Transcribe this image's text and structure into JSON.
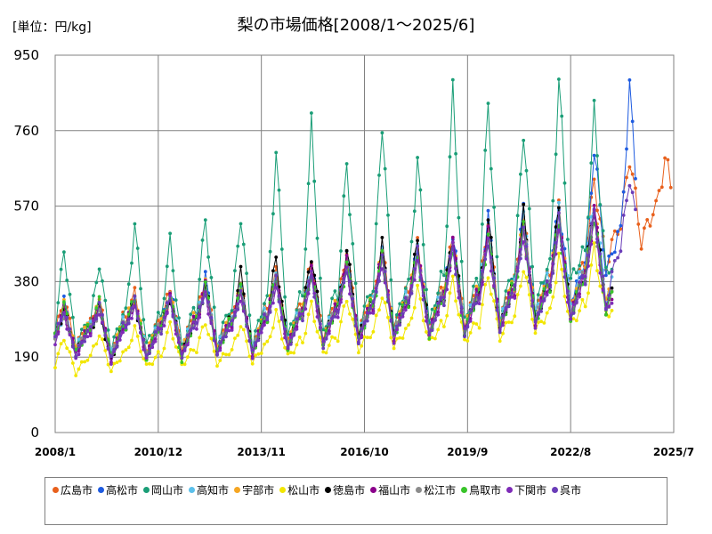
{
  "unit_label": "[単位：円/kg]",
  "chart_data": {
    "type": "line",
    "title": "梨の市場価格[2008/1～2025/6]",
    "xlabel": "",
    "ylabel": "",
    "ylim": [
      0,
      950
    ],
    "yticks": [
      0,
      190,
      380,
      570,
      760,
      950
    ],
    "xlim": [
      "2008-01",
      "2025-07"
    ],
    "xtick_labels": [
      "2008/1",
      "2010/12",
      "2013/11",
      "2016/10",
      "2019/9",
      "2022/8",
      "2025/7"
    ],
    "grid": true,
    "legend_position": "bottom",
    "series": [
      {
        "name": "広島市",
        "color": "#E8601C",
        "end": "2025-06",
        "years": [
          [
            250,
            340,
            215
          ],
          [
            275,
            330,
            195
          ],
          [
            290,
            350,
            200
          ],
          [
            280,
            360,
            210
          ],
          [
            300,
            380,
            215
          ],
          [
            290,
            370,
            210
          ],
          [
            310,
            400,
            230
          ],
          [
            320,
            430,
            235
          ],
          [
            330,
            450,
            250
          ],
          [
            340,
            460,
            260
          ],
          [
            350,
            470,
            265
          ],
          [
            360,
            490,
            270
          ],
          [
            360,
            520,
            280
          ],
          [
            380,
            540,
            300
          ],
          [
            390,
            560,
            320
          ],
          [
            420,
            640,
            420
          ],
          [
            520,
            700,
            480
          ],
          [
            560,
            690,
            560
          ]
        ]
      },
      {
        "name": "高松市",
        "color": "#1E5BE0",
        "end": "2024-06",
        "years": [
          [
            230,
            330,
            200
          ],
          [
            260,
            320,
            190
          ],
          [
            270,
            340,
            195
          ],
          [
            270,
            360,
            205
          ],
          [
            280,
            390,
            210
          ],
          [
            275,
            360,
            205
          ],
          [
            290,
            390,
            225
          ],
          [
            300,
            420,
            230
          ],
          [
            310,
            440,
            240
          ],
          [
            320,
            455,
            250
          ],
          [
            330,
            470,
            255
          ],
          [
            350,
            500,
            260
          ],
          [
            350,
            540,
            270
          ],
          [
            370,
            560,
            290
          ],
          [
            380,
            580,
            310
          ],
          [
            420,
            720,
            400
          ],
          [
            500,
            860,
            470
          ]
        ]
      },
      {
        "name": "岡山市",
        "color": "#1A9E77",
        "end": "2023-10",
        "years": [
          [
            260,
            460,
            220
          ],
          [
            280,
            430,
            210
          ],
          [
            300,
            520,
            220
          ],
          [
            290,
            480,
            215
          ],
          [
            310,
            540,
            225
          ],
          [
            310,
            550,
            220
          ],
          [
            330,
            700,
            240
          ],
          [
            340,
            770,
            250
          ],
          [
            350,
            680,
            255
          ],
          [
            360,
            790,
            260
          ],
          [
            370,
            690,
            270
          ],
          [
            390,
            850,
            280
          ],
          [
            380,
            830,
            290
          ],
          [
            400,
            770,
            310
          ],
          [
            420,
            890,
            380
          ],
          [
            450,
            800,
            400
          ]
        ]
      },
      {
        "name": "高知市",
        "color": "#5BC0EB",
        "end": "2023-10",
        "years": [
          [
            240,
            300,
            210
          ],
          [
            270,
            310,
            200
          ],
          [
            280,
            330,
            200
          ],
          [
            270,
            340,
            210
          ],
          [
            290,
            370,
            215
          ],
          [
            280,
            360,
            210
          ],
          [
            300,
            390,
            225
          ],
          [
            310,
            410,
            235
          ],
          [
            320,
            430,
            240
          ],
          [
            330,
            450,
            250
          ],
          [
            340,
            460,
            255
          ],
          [
            350,
            480,
            260
          ],
          [
            355,
            510,
            275
          ],
          [
            370,
            540,
            300
          ],
          [
            385,
            560,
            320
          ],
          [
            410,
            580,
            340
          ]
        ]
      },
      {
        "name": "宇部市",
        "color": "#F5A623",
        "end": "2023-10",
        "years": [
          [
            240,
            320,
            210
          ],
          [
            270,
            320,
            195
          ],
          [
            280,
            340,
            200
          ],
          [
            275,
            350,
            205
          ],
          [
            290,
            370,
            210
          ],
          [
            285,
            360,
            205
          ],
          [
            300,
            390,
            225
          ],
          [
            310,
            410,
            230
          ],
          [
            320,
            430,
            240
          ],
          [
            330,
            450,
            250
          ],
          [
            340,
            460,
            255
          ],
          [
            350,
            480,
            260
          ],
          [
            355,
            500,
            270
          ],
          [
            370,
            530,
            290
          ],
          [
            380,
            540,
            300
          ],
          [
            400,
            560,
            330
          ]
        ]
      },
      {
        "name": "松山市",
        "color": "#F2E600",
        "end": "2023-10",
        "years": [
          [
            170,
            240,
            150
          ],
          [
            190,
            250,
            155
          ],
          [
            200,
            260,
            165
          ],
          [
            195,
            270,
            170
          ],
          [
            210,
            280,
            175
          ],
          [
            205,
            275,
            175
          ],
          [
            220,
            300,
            190
          ],
          [
            230,
            320,
            200
          ],
          [
            240,
            340,
            210
          ],
          [
            250,
            350,
            215
          ],
          [
            260,
            360,
            225
          ],
          [
            270,
            380,
            230
          ],
          [
            275,
            400,
            240
          ],
          [
            290,
            420,
            255
          ],
          [
            300,
            440,
            270
          ],
          [
            320,
            460,
            300
          ]
        ]
      },
      {
        "name": "徳島市",
        "color": "#000000",
        "end": "2023-10",
        "years": [
          [
            240,
            310,
            200
          ],
          [
            260,
            310,
            180
          ],
          [
            270,
            330,
            190
          ],
          [
            265,
            340,
            195
          ],
          [
            280,
            370,
            200
          ],
          [
            280,
            400,
            200
          ],
          [
            290,
            440,
            215
          ],
          [
            300,
            450,
            230
          ],
          [
            310,
            460,
            240
          ],
          [
            320,
            470,
            245
          ],
          [
            330,
            480,
            250
          ],
          [
            340,
            500,
            255
          ],
          [
            340,
            540,
            260
          ],
          [
            360,
            550,
            280
          ],
          [
            370,
            560,
            290
          ],
          [
            390,
            570,
            310
          ]
        ]
      },
      {
        "name": "福山市",
        "color": "#8B008B",
        "end": "2023-10",
        "years": [
          [
            240,
            310,
            200
          ],
          [
            260,
            320,
            185
          ],
          [
            270,
            330,
            190
          ],
          [
            265,
            340,
            195
          ],
          [
            280,
            370,
            205
          ],
          [
            275,
            360,
            200
          ],
          [
            290,
            390,
            215
          ],
          [
            300,
            410,
            225
          ],
          [
            310,
            430,
            235
          ],
          [
            320,
            450,
            240
          ],
          [
            330,
            460,
            250
          ],
          [
            340,
            480,
            255
          ],
          [
            345,
            500,
            265
          ],
          [
            360,
            520,
            280
          ],
          [
            370,
            540,
            290
          ],
          [
            390,
            560,
            310
          ]
        ]
      },
      {
        "name": "松江市",
        "color": "#8C8C8C",
        "end": "2023-10",
        "years": [
          [
            240,
            300,
            200
          ],
          [
            260,
            310,
            190
          ],
          [
            270,
            330,
            195
          ],
          [
            265,
            340,
            200
          ],
          [
            280,
            360,
            205
          ],
          [
            275,
            355,
            205
          ],
          [
            290,
            380,
            220
          ],
          [
            300,
            400,
            230
          ],
          [
            310,
            420,
            235
          ],
          [
            320,
            440,
            245
          ],
          [
            330,
            450,
            250
          ],
          [
            340,
            470,
            255
          ],
          [
            345,
            490,
            265
          ],
          [
            360,
            520,
            280
          ],
          [
            370,
            530,
            290
          ],
          [
            390,
            550,
            310
          ]
        ]
      },
      {
        "name": "鳥取市",
        "color": "#39C42A",
        "end": "2023-10",
        "years": [
          [
            240,
            320,
            200
          ],
          [
            260,
            330,
            190
          ],
          [
            270,
            340,
            190
          ],
          [
            265,
            350,
            180
          ],
          [
            280,
            370,
            200
          ],
          [
            275,
            360,
            200
          ],
          [
            290,
            390,
            215
          ],
          [
            300,
            400,
            225
          ],
          [
            310,
            420,
            230
          ],
          [
            320,
            440,
            240
          ],
          [
            330,
            450,
            245
          ],
          [
            340,
            470,
            250
          ],
          [
            345,
            490,
            260
          ],
          [
            360,
            510,
            275
          ],
          [
            370,
            530,
            290
          ],
          [
            390,
            550,
            305
          ]
        ]
      },
      {
        "name": "下関市",
        "color": "#7E2BB8",
        "end": "2023-10",
        "years": [
          [
            230,
            300,
            190
          ],
          [
            250,
            310,
            180
          ],
          [
            260,
            320,
            185
          ],
          [
            255,
            330,
            190
          ],
          [
            270,
            350,
            200
          ],
          [
            265,
            345,
            195
          ],
          [
            280,
            370,
            210
          ],
          [
            290,
            390,
            220
          ],
          [
            300,
            410,
            230
          ],
          [
            310,
            430,
            235
          ],
          [
            320,
            440,
            245
          ],
          [
            330,
            460,
            250
          ],
          [
            335,
            480,
            260
          ],
          [
            350,
            500,
            275
          ],
          [
            360,
            520,
            285
          ],
          [
            380,
            540,
            300
          ]
        ]
      },
      {
        "name": "呉市",
        "color": "#6A3DB8",
        "end": "2024-06",
        "years": [
          [
            240,
            310,
            195
          ],
          [
            255,
            320,
            185
          ],
          [
            265,
            330,
            190
          ],
          [
            260,
            340,
            195
          ],
          [
            275,
            360,
            200
          ],
          [
            270,
            350,
            200
          ],
          [
            285,
            380,
            210
          ],
          [
            295,
            400,
            220
          ],
          [
            305,
            420,
            230
          ],
          [
            315,
            440,
            240
          ],
          [
            325,
            450,
            245
          ],
          [
            335,
            470,
            250
          ],
          [
            340,
            490,
            260
          ],
          [
            355,
            510,
            270
          ],
          [
            365,
            530,
            285
          ],
          [
            390,
            560,
            320
          ],
          [
            460,
            650,
            430
          ]
        ]
      }
    ]
  }
}
